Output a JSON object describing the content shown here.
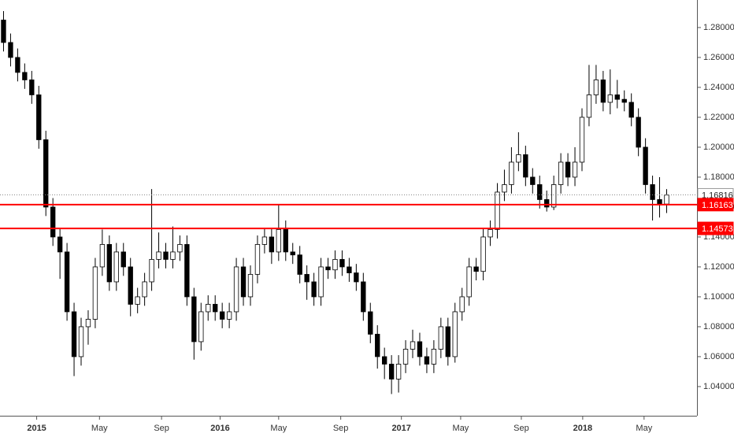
{
  "chart_data": {
    "type": "candlestick",
    "up_color": "#ffffff",
    "down_color": "#000000",
    "outline_color": "#000000",
    "open": [
      1.285,
      1.27,
      1.26,
      1.25,
      1.245,
      1.235,
      1.205,
      1.16,
      1.14,
      1.13,
      1.09,
      1.06,
      1.08,
      1.085,
      1.12,
      1.135,
      1.11,
      1.13,
      1.12,
      1.095,
      1.1,
      1.11,
      1.125,
      1.13,
      1.125,
      1.13,
      1.135,
      1.1,
      1.07,
      1.09,
      1.095,
      1.09,
      1.085,
      1.09,
      1.12,
      1.1,
      1.115,
      1.135,
      1.14,
      1.13,
      1.145,
      1.13,
      1.128,
      1.115,
      1.11,
      1.1,
      1.12,
      1.118,
      1.125,
      1.12,
      1.116,
      1.11,
      1.09,
      1.075,
      1.06,
      1.055,
      1.045,
      1.055,
      1.065,
      1.07,
      1.06,
      1.055,
      1.065,
      1.08,
      1.06,
      1.09,
      1.1,
      1.12,
      1.117,
      1.14,
      1.145,
      1.17,
      1.175,
      1.19,
      1.195,
      1.18,
      1.175,
      1.165,
      1.16,
      1.175,
      1.19,
      1.18,
      1.19,
      1.22,
      1.235,
      1.245,
      1.23,
      1.235,
      1.232,
      1.23,
      1.22,
      1.2,
      1.175,
      1.165,
      1.162
    ],
    "high": [
      1.291,
      1.276,
      1.266,
      1.256,
      1.251,
      1.241,
      1.211,
      1.166,
      1.146,
      1.136,
      1.096,
      1.086,
      1.091,
      1.126,
      1.145,
      1.141,
      1.136,
      1.136,
      1.126,
      1.106,
      1.116,
      1.172,
      1.143,
      1.136,
      1.147,
      1.141,
      1.141,
      1.106,
      1.096,
      1.101,
      1.101,
      1.096,
      1.096,
      1.126,
      1.126,
      1.121,
      1.141,
      1.146,
      1.146,
      1.162,
      1.151,
      1.136,
      1.134,
      1.121,
      1.116,
      1.126,
      1.126,
      1.131,
      1.131,
      1.126,
      1.122,
      1.116,
      1.096,
      1.081,
      1.066,
      1.061,
      1.061,
      1.071,
      1.078,
      1.076,
      1.066,
      1.071,
      1.086,
      1.086,
      1.096,
      1.106,
      1.126,
      1.126,
      1.146,
      1.151,
      1.176,
      1.185,
      1.2,
      1.21,
      1.201,
      1.186,
      1.181,
      1.171,
      1.181,
      1.196,
      1.196,
      1.2,
      1.226,
      1.255,
      1.255,
      1.251,
      1.252,
      1.245,
      1.238,
      1.236,
      1.226,
      1.206,
      1.181,
      1.18,
      1.172
    ],
    "low": [
      1.264,
      1.254,
      1.244,
      1.239,
      1.229,
      1.199,
      1.154,
      1.134,
      1.112,
      1.084,
      1.047,
      1.054,
      1.068,
      1.079,
      1.114,
      1.104,
      1.104,
      1.114,
      1.087,
      1.089,
      1.094,
      1.104,
      1.119,
      1.119,
      1.119,
      1.124,
      1.094,
      1.058,
      1.064,
      1.084,
      1.084,
      1.079,
      1.079,
      1.084,
      1.094,
      1.094,
      1.109,
      1.129,
      1.122,
      1.124,
      1.124,
      1.122,
      1.109,
      1.098,
      1.094,
      1.094,
      1.112,
      1.112,
      1.114,
      1.11,
      1.104,
      1.084,
      1.069,
      1.052,
      1.045,
      1.035,
      1.036,
      1.049,
      1.059,
      1.054,
      1.049,
      1.049,
      1.059,
      1.054,
      1.056,
      1.084,
      1.094,
      1.111,
      1.111,
      1.134,
      1.139,
      1.164,
      1.169,
      1.184,
      1.174,
      1.169,
      1.159,
      1.157,
      1.158,
      1.169,
      1.174,
      1.174,
      1.184,
      1.214,
      1.229,
      1.224,
      1.222,
      1.226,
      1.224,
      1.214,
      1.194,
      1.169,
      1.151,
      1.153,
      1.156
    ],
    "close": [
      1.27,
      1.26,
      1.25,
      1.245,
      1.235,
      1.205,
      1.16,
      1.14,
      1.13,
      1.09,
      1.06,
      1.08,
      1.085,
      1.12,
      1.135,
      1.11,
      1.13,
      1.12,
      1.095,
      1.1,
      1.11,
      1.125,
      1.13,
      1.125,
      1.13,
      1.135,
      1.1,
      1.07,
      1.09,
      1.095,
      1.09,
      1.085,
      1.09,
      1.12,
      1.1,
      1.115,
      1.135,
      1.14,
      1.13,
      1.145,
      1.13,
      1.128,
      1.115,
      1.11,
      1.1,
      1.12,
      1.118,
      1.125,
      1.12,
      1.116,
      1.11,
      1.09,
      1.075,
      1.06,
      1.055,
      1.045,
      1.055,
      1.065,
      1.07,
      1.06,
      1.055,
      1.065,
      1.08,
      1.06,
      1.09,
      1.1,
      1.12,
      1.117,
      1.14,
      1.145,
      1.17,
      1.175,
      1.19,
      1.195,
      1.18,
      1.175,
      1.165,
      1.16,
      1.175,
      1.19,
      1.18,
      1.19,
      1.22,
      1.235,
      1.245,
      1.23,
      1.235,
      1.232,
      1.23,
      1.22,
      1.2,
      1.175,
      1.165,
      1.162,
      1.168
    ],
    "xlim": [
      0,
      98.8
    ],
    "xticks": [
      {
        "value": 5.2,
        "label": "2015"
      },
      {
        "value": 14.1,
        "label": "May"
      },
      {
        "value": 22.9,
        "label": "Sep"
      },
      {
        "value": 31.2,
        "label": "2016"
      },
      {
        "value": 39.5,
        "label": "May"
      },
      {
        "value": 48.3,
        "label": "Sep"
      },
      {
        "value": 56.9,
        "label": "2017"
      },
      {
        "value": 65.3,
        "label": "May"
      },
      {
        "value": 73.9,
        "label": "Sep"
      },
      {
        "value": 82.6,
        "label": "2018"
      },
      {
        "value": 91.3,
        "label": "May"
      }
    ],
    "ylim": [
      1.0205,
      1.2984
    ],
    "yticks": [
      {
        "value": 1.04,
        "label": "1.04000"
      },
      {
        "value": 1.06,
        "label": "1.06000"
      },
      {
        "value": 1.08,
        "label": "1.08000"
      },
      {
        "value": 1.1,
        "label": "1.10000"
      },
      {
        "value": 1.12,
        "label": "1.12000"
      },
      {
        "value": 1.14,
        "label": "1.14000"
      },
      {
        "value": 1.16,
        "label": "1.16000"
      },
      {
        "value": 1.18,
        "label": "1.18000"
      },
      {
        "value": 1.2,
        "label": "1.20000"
      },
      {
        "value": 1.22,
        "label": "1.22000"
      },
      {
        "value": 1.24,
        "label": "1.24000"
      },
      {
        "value": 1.26,
        "label": "1.26000"
      },
      {
        "value": 1.28,
        "label": "1.28000"
      }
    ],
    "lines": [
      {
        "value": 1.16816,
        "color": "#888888",
        "style": "dotted"
      },
      {
        "value": 1.16163,
        "color": "#ff0000",
        "style": "solid"
      },
      {
        "value": 1.14573,
        "color": "#ff0000",
        "style": "solid"
      }
    ]
  }
}
